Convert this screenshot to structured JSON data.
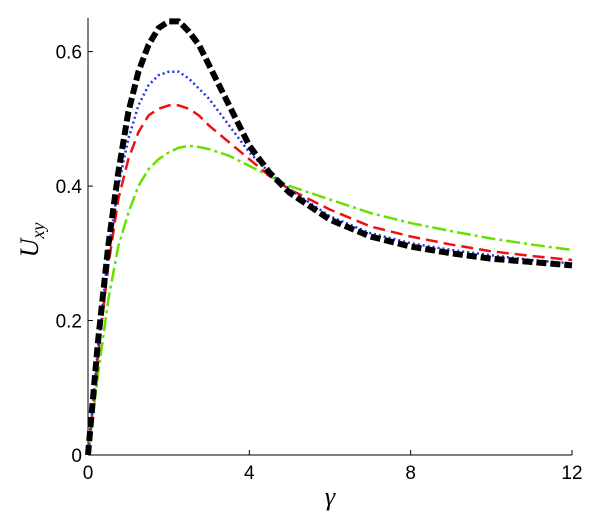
{
  "chart_data": {
    "type": "line",
    "x_label": "γ",
    "y_label": "U",
    "y_label_subscript": "xy",
    "x": [
      0,
      0.25,
      0.5,
      0.75,
      1,
      1.25,
      1.5,
      1.75,
      2,
      2.25,
      2.5,
      2.75,
      3,
      3.5,
      4,
      4.5,
      5,
      6,
      7,
      8,
      9,
      10,
      11,
      12
    ],
    "series": [
      {
        "color": "#66e000",
        "dash": "14 4 3 4",
        "width": 2.5,
        "values": [
          0,
          0.12,
          0.23,
          0.31,
          0.36,
          0.4,
          0.425,
          0.44,
          0.45,
          0.457,
          0.46,
          0.458,
          0.455,
          0.445,
          0.43,
          0.415,
          0.4,
          0.38,
          0.36,
          0.345,
          0.333,
          0.322,
          0.313,
          0.305
        ]
      },
      {
        "color": "#ee1111",
        "dash": "12 6",
        "width": 2.5,
        "values": [
          0,
          0.15,
          0.28,
          0.38,
          0.44,
          0.48,
          0.505,
          0.515,
          0.52,
          0.52,
          0.515,
          0.505,
          0.49,
          0.465,
          0.44,
          0.415,
          0.395,
          0.365,
          0.34,
          0.325,
          0.313,
          0.303,
          0.296,
          0.29
        ]
      },
      {
        "color": "#2233ee",
        "dash": "2 3",
        "width": 2.5,
        "values": [
          0,
          0.16,
          0.3,
          0.4,
          0.47,
          0.52,
          0.55,
          0.565,
          0.57,
          0.57,
          0.56,
          0.545,
          0.53,
          0.49,
          0.45,
          0.42,
          0.395,
          0.355,
          0.33,
          0.315,
          0.305,
          0.297,
          0.29,
          0.285
        ]
      },
      {
        "color": "#000000",
        "dash": "10 4",
        "width": 6,
        "values": [
          0,
          0.17,
          0.31,
          0.42,
          0.51,
          0.57,
          0.61,
          0.635,
          0.645,
          0.645,
          0.63,
          0.61,
          0.58,
          0.52,
          0.46,
          0.42,
          0.39,
          0.35,
          0.325,
          0.31,
          0.3,
          0.292,
          0.287,
          0.282
        ]
      }
    ],
    "xlim": [
      0,
      12
    ],
    "xticks": [
      0,
      4,
      8,
      12
    ],
    "ylim": [
      0,
      0.65
    ],
    "yticks": [
      0,
      0.2,
      0.4,
      0.6
    ]
  }
}
